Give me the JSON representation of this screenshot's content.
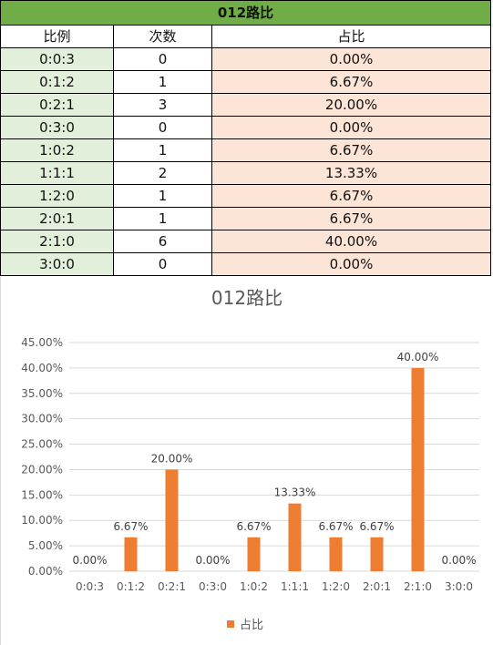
{
  "table": {
    "title": "012路比",
    "headers": [
      "比例",
      "次数",
      "占比"
    ],
    "rows": [
      [
        "0:0:3",
        "0",
        "0.00%"
      ],
      [
        "0:1:2",
        "1",
        "6.67%"
      ],
      [
        "0:2:1",
        "3",
        "20.00%"
      ],
      [
        "0:3:0",
        "0",
        "0.00%"
      ],
      [
        "1:0:2",
        "1",
        "6.67%"
      ],
      [
        "1:1:1",
        "2",
        "13.33%"
      ],
      [
        "1:2:0",
        "1",
        "6.67%"
      ],
      [
        "2:0:1",
        "1",
        "6.67%"
      ],
      [
        "2:1:0",
        "6",
        "40.00%"
      ],
      [
        "3:0:0",
        "0",
        "0.00%"
      ]
    ]
  },
  "chart_data": {
    "type": "bar",
    "title": "012路比",
    "categories": [
      "0:0:3",
      "0:1:2",
      "0:2:1",
      "0:3:0",
      "1:0:2",
      "1:1:1",
      "1:2:0",
      "2:0:1",
      "2:1:0",
      "3:0:0"
    ],
    "series": [
      {
        "name": "占比",
        "values": [
          0.0,
          6.67,
          20.0,
          0.0,
          6.67,
          13.33,
          6.67,
          6.67,
          40.0,
          0.0
        ],
        "color": "#ed7d31"
      }
    ],
    "data_labels": [
      "0.00%",
      "6.67%",
      "20.00%",
      "0.00%",
      "6.67%",
      "13.33%",
      "6.67%",
      "6.67%",
      "40.00%",
      "0.00%"
    ],
    "y_ticks": [
      "0.00%",
      "5.00%",
      "10.00%",
      "15.00%",
      "20.00%",
      "25.00%",
      "30.00%",
      "35.00%",
      "40.00%",
      "45.00%"
    ],
    "ylim": [
      0,
      45
    ],
    "grid": true,
    "legend_position": "bottom"
  }
}
